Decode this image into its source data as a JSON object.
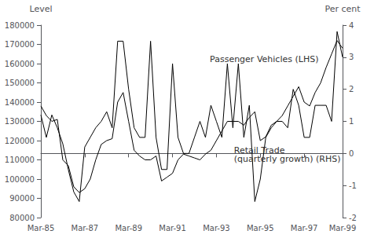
{
  "chart_data": {
    "type": "line",
    "ylabel": "Level",
    "y2label": "Per cent",
    "categories": [
      "Mar-85",
      null,
      null,
      null,
      null,
      null,
      null,
      null,
      "Mar-87",
      null,
      null,
      null,
      null,
      null,
      null,
      null,
      "Mar-89",
      null,
      null,
      null,
      null,
      null,
      null,
      null,
      "Mar-91",
      null,
      null,
      null,
      null,
      null,
      null,
      null,
      "Mar-93",
      null,
      null,
      null,
      null,
      null,
      null,
      null,
      "Mar-95",
      null,
      null,
      null,
      null,
      null,
      null,
      null,
      "Mar-97",
      null,
      null,
      null,
      null,
      null,
      null,
      "Mar-99"
    ],
    "series": [
      {
        "color": "#000000",
        "values": [
          138000,
          133000,
          130000,
          131000,
          110000,
          107000,
          96000,
          93000,
          95000,
          100000,
          110000,
          118000,
          120000,
          121000,
          140000,
          145000,
          130000,
          115000,
          112000,
          110000,
          110000,
          112000,
          99000,
          101000,
          103000,
          110000,
          113000,
          112000,
          111000,
          110000,
          113000,
          115000,
          120000,
          125000,
          130000,
          130000,
          130000,
          128000,
          132000,
          135000,
          120000,
          122000,
          128000,
          130000,
          133000,
          138000,
          143000,
          148000,
          140000,
          138000,
          145000,
          150000,
          158000,
          165000,
          172000,
          168000
        ]
      },
      {
        "color": "#000000",
        "axis": "y2",
        "values": [
          1.2,
          0.5,
          1.2,
          0.8,
          0.3,
          -0.5,
          -1.2,
          -1.5,
          0.2,
          0.5,
          0.8,
          1.0,
          1.3,
          0.8,
          3.5,
          3.5,
          2.0,
          0.8,
          0.5,
          0.5,
          3.5,
          0.5,
          -0.5,
          -0.5,
          2.8,
          0.5,
          0.0,
          0.0,
          0.5,
          1.0,
          0.5,
          1.5,
          1.0,
          0.5,
          2.8,
          0.8,
          2.8,
          0.5,
          1.5,
          -1.5,
          -0.8,
          0.5,
          0.8,
          1.0,
          1.0,
          0.8,
          2.0,
          1.5,
          0.5,
          0.5,
          1.5,
          1.5,
          1.5,
          1.0,
          3.8,
          3.0
        ]
      }
    ],
    "ylim": [
      80000,
      180000
    ],
    "yticks": [
      80000,
      90000,
      100000,
      110000,
      120000,
      130000,
      140000,
      150000,
      160000,
      170000,
      180000
    ],
    "y2lim": [
      -2,
      4
    ],
    "y2ticks": [
      -2,
      -1,
      0,
      1,
      2,
      3,
      4
    ],
    "grid": false,
    "annotations": [
      "Passenger Vehicles (LHS)",
      "Retail Trade\n(quarterly growth) (RHS)"
    ]
  }
}
